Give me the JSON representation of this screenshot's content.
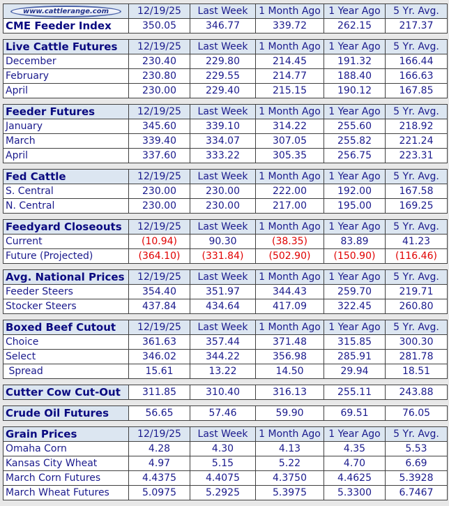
{
  "logo_text": "www.cattlerange.com",
  "colors": {
    "text": "#1a1a8c",
    "header_bg": "#dce6f1",
    "negative": "#e00000"
  },
  "columns": [
    "12/19/25",
    "Last Week",
    "1 Month Ago",
    "1 Year Ago",
    "5 Yr. Avg."
  ],
  "sections": [
    {
      "title": null,
      "logo": true,
      "rows": [
        {
          "label": "CME Feeder Index",
          "bold": true,
          "values": [
            "350.05",
            "346.77",
            "339.72",
            "262.15",
            "217.37"
          ]
        }
      ]
    },
    {
      "title": "Live Cattle Futures",
      "rows": [
        {
          "label": "December",
          "values": [
            "230.40",
            "229.80",
            "214.45",
            "191.32",
            "166.44"
          ]
        },
        {
          "label": "February",
          "values": [
            "230.80",
            "229.55",
            "214.77",
            "188.40",
            "166.63"
          ]
        },
        {
          "label": "April",
          "values": [
            "230.00",
            "229.40",
            "215.15",
            "190.12",
            "167.85"
          ]
        }
      ]
    },
    {
      "title": "Feeder Futures",
      "rows": [
        {
          "label": "January",
          "values": [
            "345.60",
            "339.10",
            "314.22",
            "255.60",
            "218.92"
          ]
        },
        {
          "label": "March",
          "values": [
            "339.40",
            "334.07",
            "307.05",
            "255.82",
            "221.24"
          ]
        },
        {
          "label": "April",
          "values": [
            "337.60",
            "333.22",
            "305.35",
            "256.75",
            "223.31"
          ]
        }
      ]
    },
    {
      "title": "Fed Cattle",
      "rows": [
        {
          "label": "S. Central",
          "values": [
            "230.00",
            "230.00",
            "222.00",
            "192.00",
            "167.58"
          ]
        },
        {
          "label": "N. Central",
          "values": [
            "230.00",
            "230.00",
            "217.00",
            "195.00",
            "169.25"
          ]
        }
      ]
    },
    {
      "title": "Feedyard Closeouts",
      "rows": [
        {
          "label": "Current",
          "values": [
            "(10.94)",
            "90.30",
            "(38.35)",
            "83.89",
            "41.23"
          ]
        },
        {
          "label": "Future (Projected)",
          "values": [
            "(364.10)",
            "(331.84)",
            "(502.90)",
            "(150.90)",
            "(116.46)"
          ]
        }
      ]
    },
    {
      "title": "Avg. National Prices",
      "rows": [
        {
          "label": "Feeder Steers",
          "values": [
            "354.40",
            "351.97",
            "344.43",
            "259.70",
            "219.71"
          ]
        },
        {
          "label": "Stocker Steers",
          "values": [
            "437.84",
            "434.64",
            "417.09",
            "322.45",
            "260.80"
          ]
        }
      ]
    },
    {
      "title": "Boxed Beef Cutout",
      "rows": [
        {
          "label": "Choice",
          "values": [
            "361.63",
            "357.44",
            "371.48",
            "315.85",
            "300.30"
          ]
        },
        {
          "label": "Select",
          "values": [
            "346.02",
            "344.22",
            "356.98",
            "285.91",
            "281.78"
          ]
        },
        {
          "label": " Spread",
          "values": [
            "15.61",
            "13.22",
            "14.50",
            "29.94",
            "18.51"
          ]
        }
      ]
    },
    {
      "title": null,
      "single": true,
      "rows": [
        {
          "label": "Cutter Cow Cut-Out",
          "values": [
            "311.85",
            "310.40",
            "316.13",
            "255.11",
            "243.88"
          ]
        }
      ]
    },
    {
      "title": null,
      "single": true,
      "rows": [
        {
          "label": "Crude Oil Futures",
          "values": [
            "56.65",
            "57.46",
            "59.90",
            "69.51",
            "76.05"
          ]
        }
      ]
    },
    {
      "title": "Grain Prices",
      "rows": [
        {
          "label": "Omaha Corn",
          "values": [
            "4.28",
            "4.30",
            "4.13",
            "4.35",
            "5.53"
          ]
        },
        {
          "label": "Kansas City Wheat",
          "values": [
            "4.97",
            "5.15",
            "5.22",
            "4.70",
            "6.69"
          ]
        },
        {
          "label": "March Corn Futures",
          "values": [
            "4.4375",
            "4.4075",
            "4.3750",
            "4.4625",
            "5.3928"
          ]
        },
        {
          "label": "March Wheat Futures",
          "values": [
            "5.0975",
            "5.2925",
            "5.3975",
            "5.3300",
            "6.7467"
          ]
        }
      ]
    }
  ]
}
